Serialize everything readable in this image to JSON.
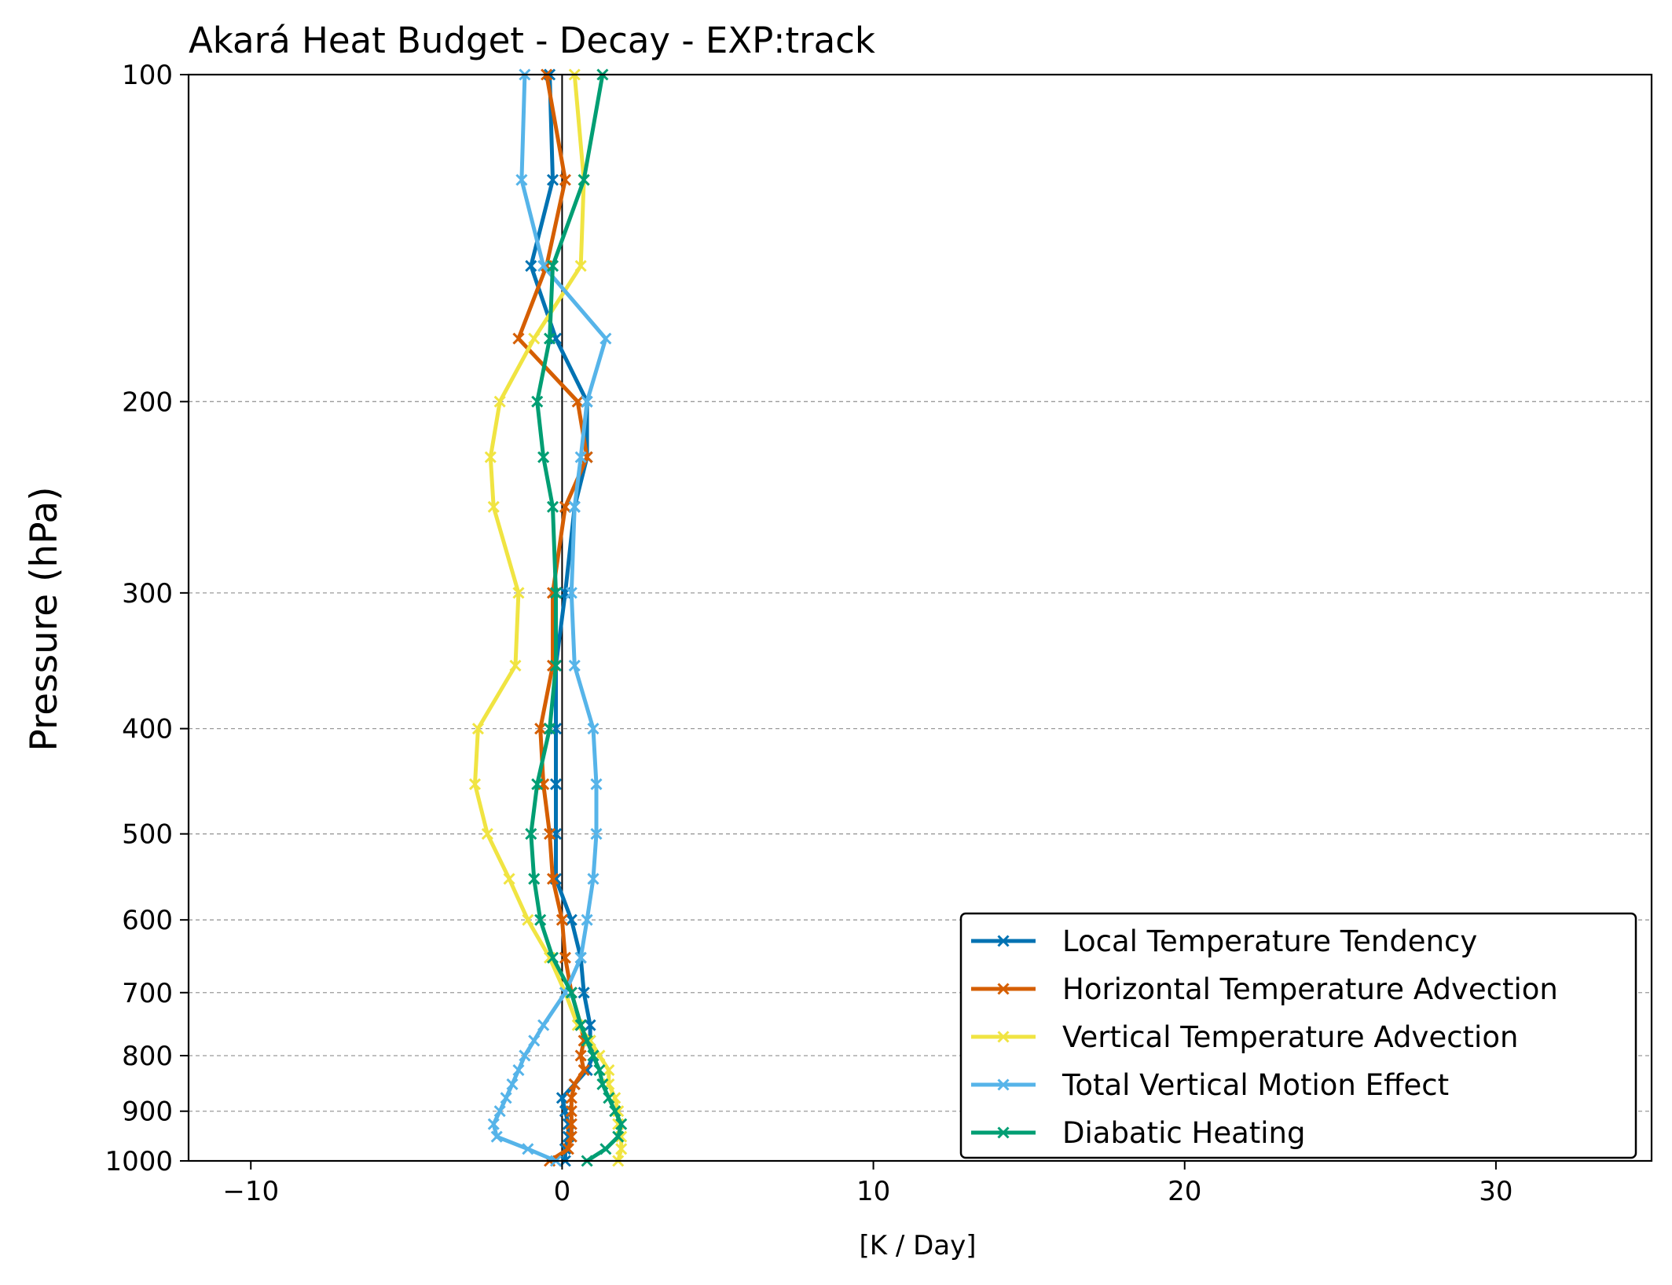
{
  "chart_data": {
    "type": "line",
    "title": "Akará Heat Budget - Decay - EXP:track",
    "xlabel": "[K / Day]",
    "ylabel": "Pressure (hPa)",
    "xlim": [
      -12,
      35
    ],
    "ylim": [
      1000,
      100
    ],
    "y_scale": "log",
    "x_ticks": [
      -10,
      0,
      10,
      20,
      30
    ],
    "x_tick_labels": [
      "−10",
      "0",
      "10",
      "20",
      "30"
    ],
    "y_ticks": [
      100,
      200,
      300,
      400,
      500,
      600,
      700,
      800,
      900,
      1000
    ],
    "y_tick_labels": [
      "100",
      "200",
      "300",
      "400",
      "500",
      "600",
      "700",
      "800",
      "900",
      "1000"
    ],
    "y_grid": true,
    "grid_style": "dashed",
    "zero_line": 0,
    "legend_position": "lower-right",
    "levels": [
      100,
      125,
      150,
      175,
      200,
      225,
      250,
      300,
      350,
      400,
      450,
      500,
      550,
      600,
      650,
      700,
      750,
      775,
      800,
      825,
      850,
      875,
      900,
      925,
      950,
      975,
      1000
    ],
    "series": [
      {
        "name": "Local Temperature Tendency",
        "color": "#0072B2",
        "values": [
          -0.4,
          -0.3,
          -1.0,
          -0.2,
          0.8,
          0.8,
          0.4,
          0.1,
          -0.2,
          -0.2,
          -0.2,
          -0.2,
          -0.2,
          0.3,
          0.6,
          0.7,
          0.9,
          0.9,
          1.0,
          0.8,
          0.4,
          0.0,
          0.1,
          0.2,
          0.2,
          0.1,
          0.1
        ]
      },
      {
        "name": "Horizontal Temperature Advection",
        "color": "#D55E00",
        "values": [
          -0.5,
          0.1,
          -0.5,
          -1.4,
          0.5,
          0.8,
          0.1,
          -0.3,
          -0.3,
          -0.7,
          -0.6,
          -0.4,
          -0.3,
          0.0,
          0.1,
          0.3,
          0.6,
          0.7,
          0.6,
          0.7,
          0.4,
          0.3,
          0.3,
          0.3,
          0.3,
          0.2,
          -0.4
        ]
      },
      {
        "name": "Vertical Temperature Advection",
        "color": "#F0E442",
        "values": [
          0.4,
          0.7,
          0.6,
          -0.9,
          -2.0,
          -2.3,
          -2.2,
          -1.4,
          -1.5,
          -2.7,
          -2.8,
          -2.4,
          -1.7,
          -1.1,
          -0.4,
          0.1,
          0.5,
          0.9,
          1.2,
          1.5,
          1.5,
          1.7,
          1.8,
          1.8,
          1.9,
          1.9,
          1.8
        ]
      },
      {
        "name": "Total Vertical Motion Effect",
        "color": "#56B4E9",
        "values": [
          -1.2,
          -1.3,
          -0.6,
          1.4,
          0.8,
          0.6,
          0.4,
          0.3,
          0.4,
          1.0,
          1.1,
          1.1,
          1.0,
          0.8,
          0.6,
          0.1,
          -0.6,
          -0.9,
          -1.2,
          -1.4,
          -1.6,
          -1.8,
          -2.0,
          -2.2,
          -2.1,
          -1.1,
          -0.2
        ]
      },
      {
        "name": "Diabatic Heating",
        "color": "#009E73",
        "values": [
          1.3,
          0.7,
          -0.3,
          -0.4,
          -0.8,
          -0.6,
          -0.3,
          -0.2,
          -0.2,
          -0.4,
          -0.8,
          -1.0,
          -0.9,
          -0.7,
          -0.3,
          0.3,
          0.6,
          0.8,
          1.0,
          1.2,
          1.3,
          1.5,
          1.7,
          1.9,
          1.8,
          1.4,
          0.8
        ]
      }
    ]
  }
}
